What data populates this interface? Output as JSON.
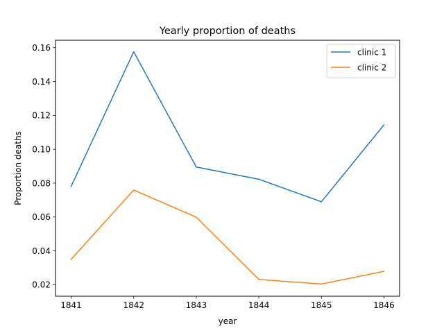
{
  "chart_data": {
    "type": "line",
    "title": "Yearly proportion of deaths",
    "xlabel": "year",
    "ylabel": "Proportion deaths",
    "x": [
      1841,
      1842,
      1843,
      1844,
      1845,
      1846
    ],
    "xlim": [
      1840.75,
      1846.25
    ],
    "ylim": [
      0.0132,
      0.1644
    ],
    "yticks": [
      0.02,
      0.04,
      0.06,
      0.08,
      0.1,
      0.12,
      0.14,
      0.16
    ],
    "ytick_labels": [
      "0.02",
      "0.04",
      "0.06",
      "0.08",
      "0.10",
      "0.12",
      "0.14",
      "0.16"
    ],
    "xtick_labels": [
      "1841",
      "1842",
      "1843",
      "1844",
      "1845",
      "1846"
    ],
    "grid": false,
    "legend_position": "top-right",
    "series": [
      {
        "name": "clinic 1",
        "color": "#1f77b4",
        "values": [
          0.0781,
          0.1576,
          0.0895,
          0.0823,
          0.069,
          0.1144
        ]
      },
      {
        "name": "clinic 2",
        "color": "#ff7f0e",
        "values": [
          0.035,
          0.0759,
          0.0599,
          0.0231,
          0.0204,
          0.0279
        ]
      }
    ]
  }
}
